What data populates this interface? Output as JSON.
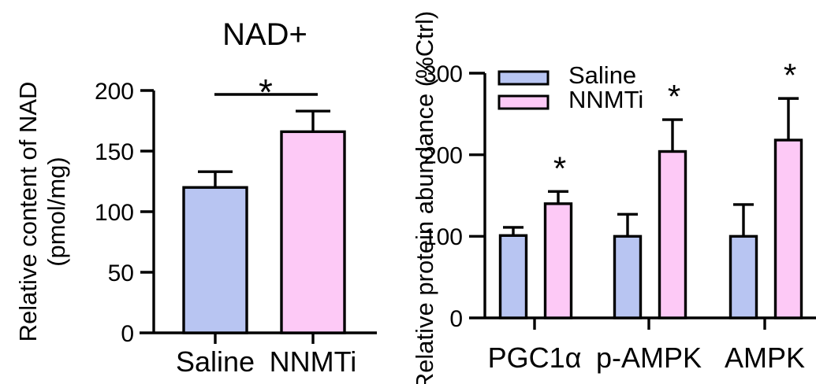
{
  "figure": {
    "background": "#ffffff",
    "axis_color": "#000000",
    "series_colors": {
      "Saline": "#b8c5f2",
      "NNMTi": "#fdc9f6"
    }
  },
  "chart_data": [
    {
      "id": "nad",
      "type": "bar",
      "title": "NAD+",
      "ylabel_lines": [
        "Relative content of NAD",
        "(pmol/mg)"
      ],
      "ylim": [
        0,
        200
      ],
      "yticks": [
        0,
        50,
        100,
        150,
        200
      ],
      "categories": [
        "Saline",
        "NNMTi"
      ],
      "values": [
        120,
        166
      ],
      "errors_plus": [
        13,
        17
      ],
      "bar_colors": [
        "#b8c5f2",
        "#fdc9f6"
      ],
      "grid": false,
      "legend": null,
      "significance": {
        "label": "*",
        "between": [
          "Saline",
          "NNMTi"
        ]
      }
    },
    {
      "id": "proteins",
      "type": "bar",
      "title": "",
      "ylabel": "Relative protein abundance (%Ctrl)",
      "ylim": [
        0,
        300
      ],
      "yticks": [
        0,
        100,
        200,
        300
      ],
      "categories": [
        "PGC1α",
        "p-AMPK",
        "AMPK"
      ],
      "series": [
        {
          "name": "Saline",
          "color": "#b8c5f2",
          "values": [
            101,
            100,
            100
          ],
          "errors_plus": [
            10,
            27,
            39
          ],
          "significance": [
            "",
            "",
            ""
          ]
        },
        {
          "name": "NNMTi",
          "color": "#fdc9f6",
          "values": [
            140,
            204,
            218
          ],
          "errors_plus": [
            15,
            39,
            51
          ],
          "significance": [
            "*",
            "*",
            "*"
          ]
        }
      ],
      "grid": false,
      "legend": {
        "position": "top-left-inside",
        "entries": [
          "Saline",
          "NNMTi"
        ]
      }
    }
  ]
}
